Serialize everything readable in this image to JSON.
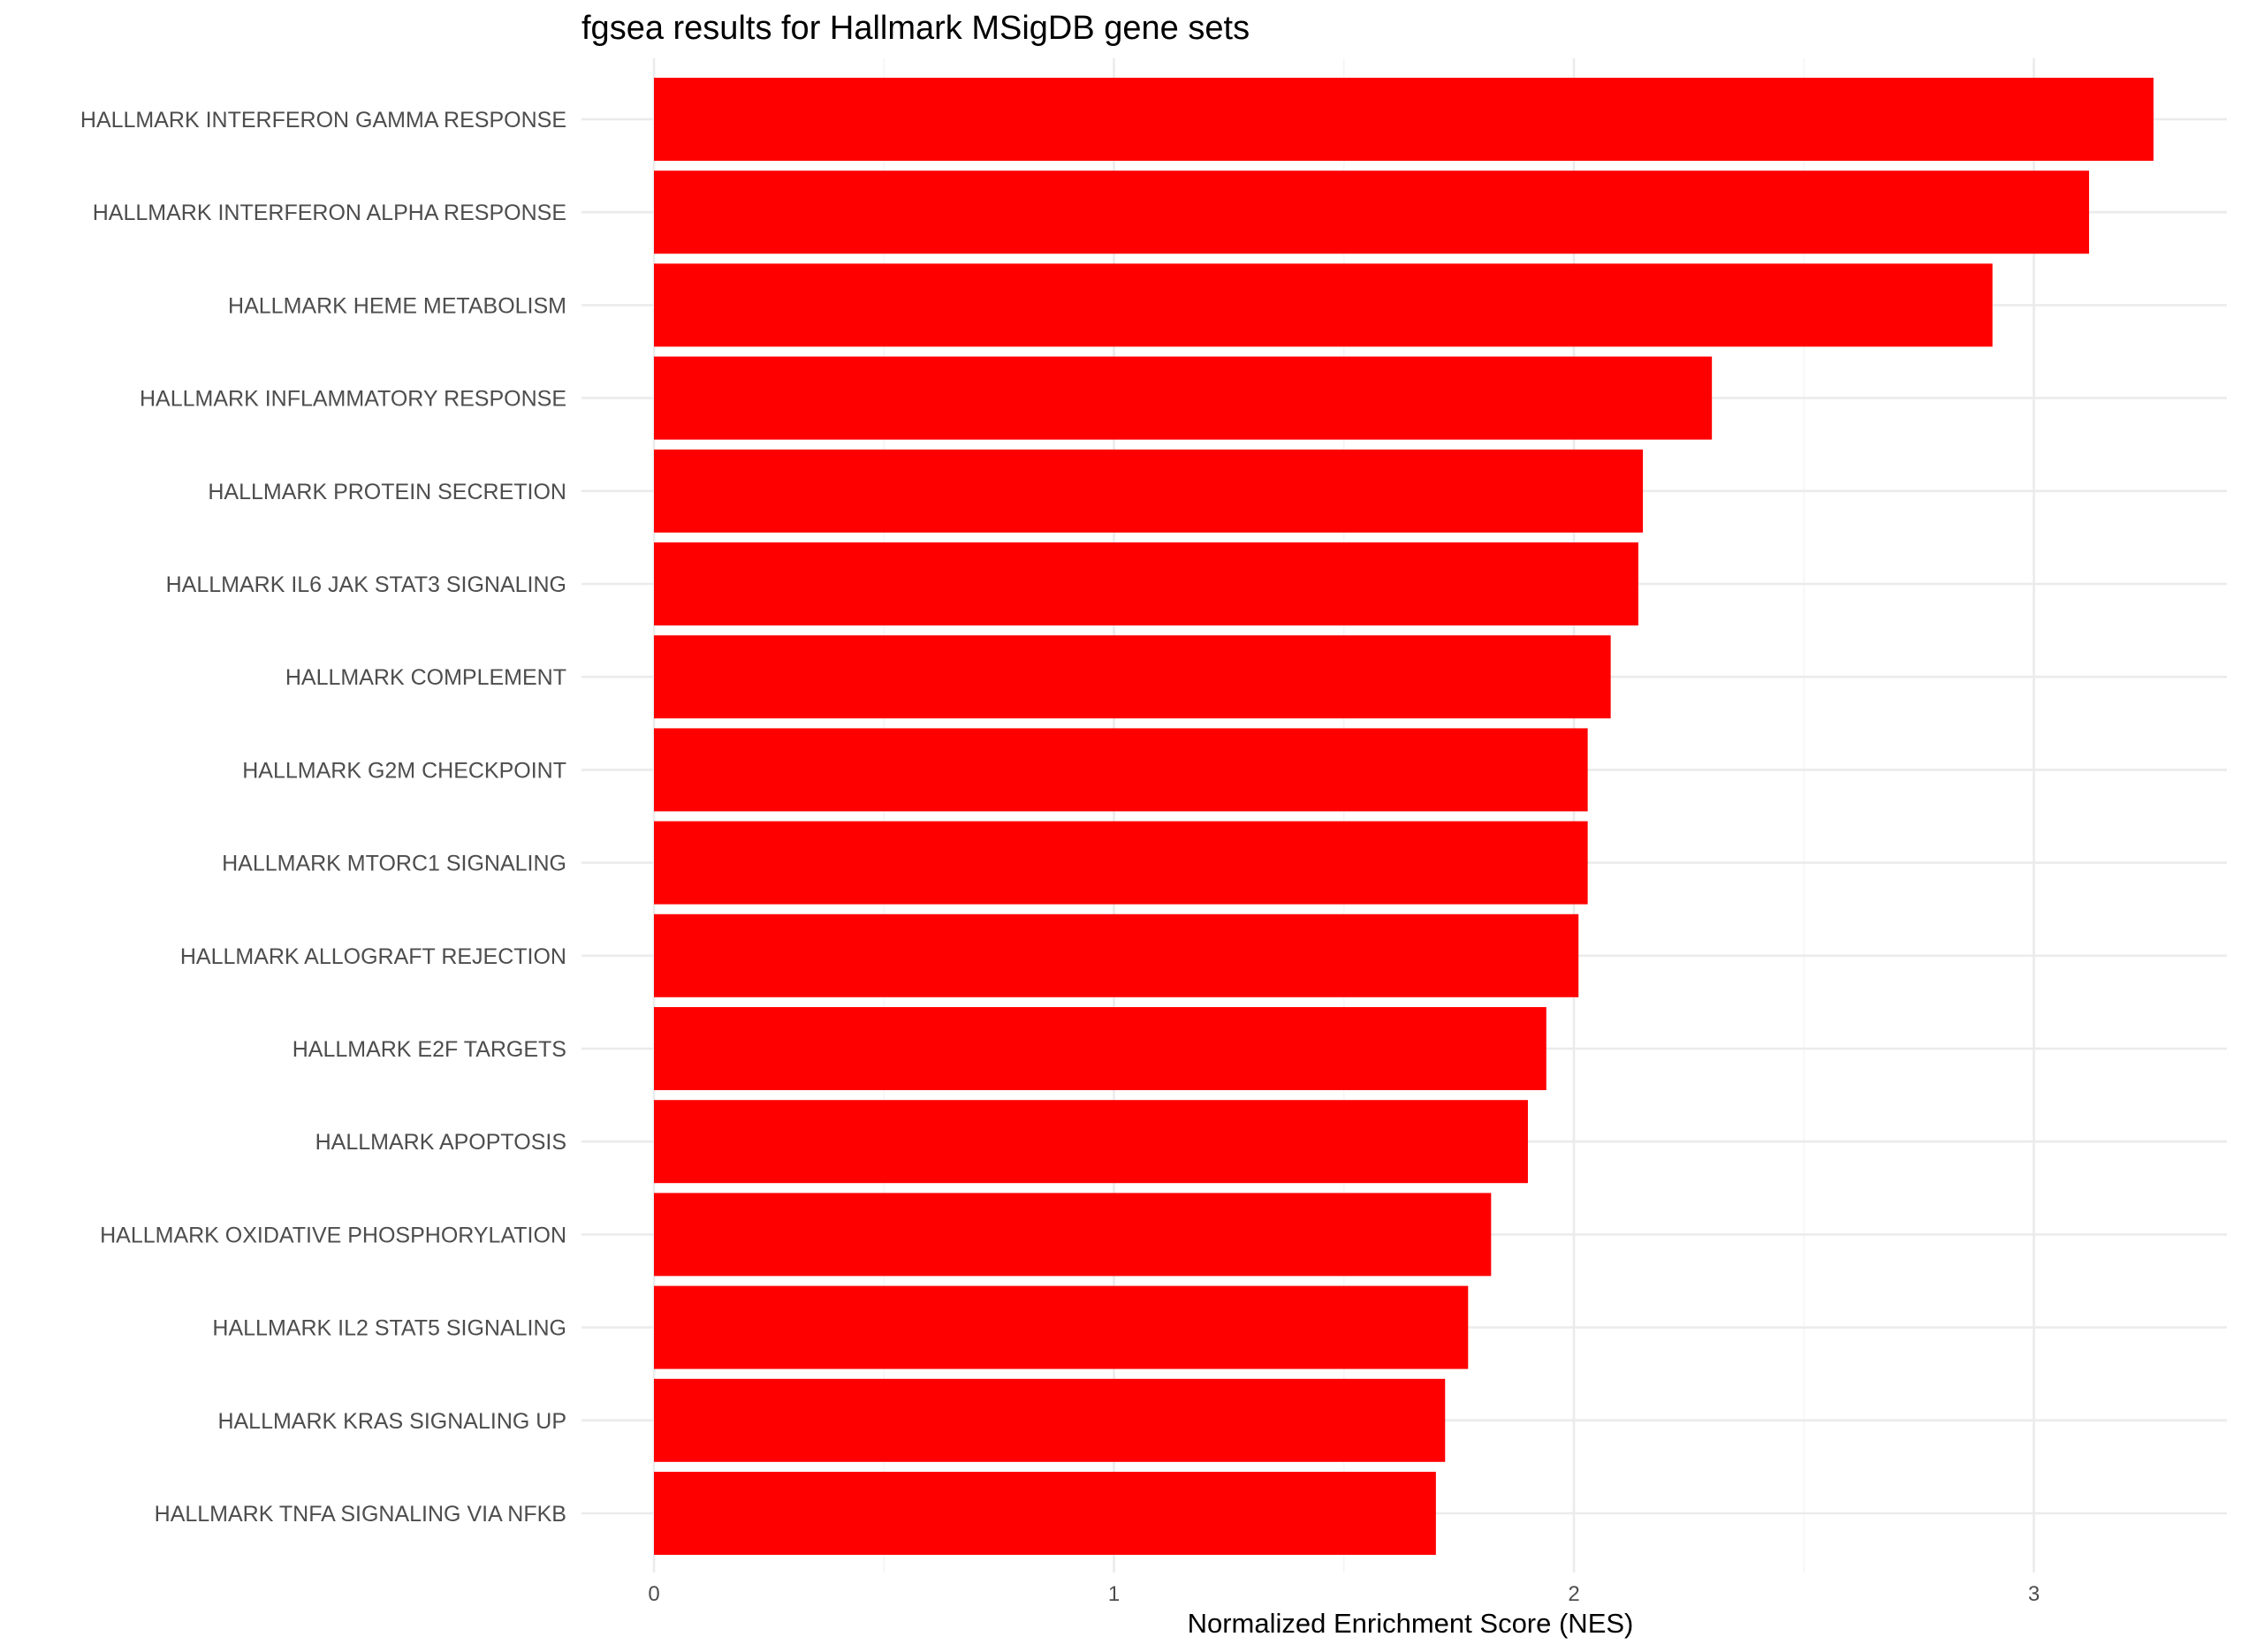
{
  "chart_data": {
    "type": "bar",
    "orientation": "horizontal",
    "title": "fgsea results for Hallmark MSigDB gene sets",
    "xlabel": "Normalized Enrichment Score (NES)",
    "ylabel": "",
    "xlim": [
      0,
      3.42
    ],
    "x_ticks": [
      0,
      1,
      2,
      3
    ],
    "x_tick_labels": [
      "0",
      "1",
      "2",
      "3"
    ],
    "grid": true,
    "bar_color": "#ff0000",
    "categories": [
      "HALLMARK INTERFERON GAMMA RESPONSE",
      "HALLMARK INTERFERON ALPHA RESPONSE",
      "HALLMARK HEME METABOLISM",
      "HALLMARK INFLAMMATORY RESPONSE",
      "HALLMARK PROTEIN SECRETION",
      "HALLMARK IL6 JAK STAT3 SIGNALING",
      "HALLMARK COMPLEMENT",
      "HALLMARK G2M CHECKPOINT",
      "HALLMARK MTORC1 SIGNALING",
      "HALLMARK ALLOGRAFT REJECTION",
      "HALLMARK E2F TARGETS",
      "HALLMARK APOPTOSIS",
      "HALLMARK OXIDATIVE PHOSPHORYLATION",
      "HALLMARK IL2 STAT5 SIGNALING",
      "HALLMARK KRAS SIGNALING UP",
      "HALLMARK TNFA SIGNALING VIA NFKB"
    ],
    "values": [
      3.26,
      3.12,
      2.91,
      2.3,
      2.15,
      2.14,
      2.08,
      2.03,
      2.03,
      2.01,
      1.94,
      1.9,
      1.82,
      1.77,
      1.72,
      1.7
    ]
  }
}
